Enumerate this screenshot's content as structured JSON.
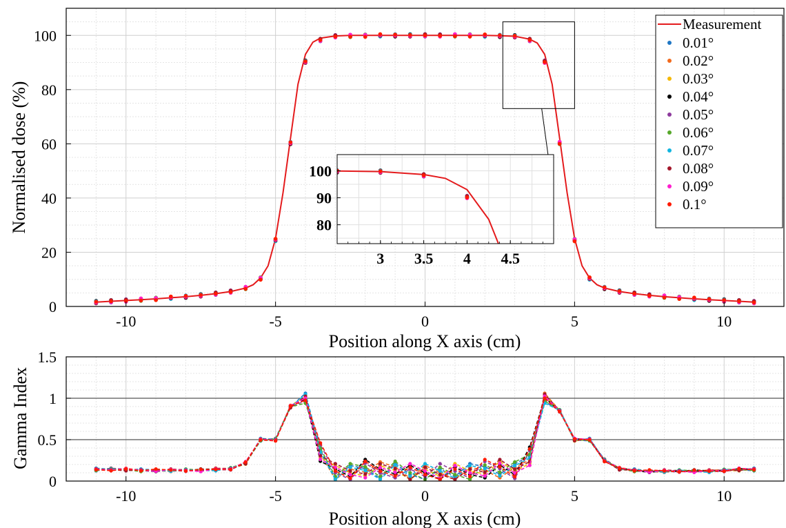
{
  "chart_data": [
    {
      "type": "line",
      "xlabel": "Position along X axis (cm)",
      "ylabel": "Normalised dose (%)",
      "xlim": [
        -12,
        12
      ],
      "ylim": [
        0,
        110
      ],
      "xticks": [
        -10,
        -5,
        0,
        5,
        10
      ],
      "xtick_labels": [
        "-10",
        "-5",
        "0",
        "5",
        "10"
      ],
      "yticks": [
        0,
        20,
        40,
        60,
        80,
        100
      ],
      "ytick_labels": [
        "0",
        "20",
        "40",
        "60",
        "80",
        "100"
      ],
      "grid": true,
      "legend_position": "top-right",
      "measurement": {
        "name": "Measurement",
        "color": "#e41a1c",
        "x": [
          -11,
          -10.5,
          -10,
          -9.5,
          -9,
          -8.5,
          -8,
          -7.5,
          -7,
          -6.5,
          -6,
          -5.75,
          -5.5,
          -5.25,
          -5,
          -4.75,
          -4.5,
          -4.25,
          -4,
          -3.75,
          -3.5,
          -3,
          -2.5,
          -2,
          -1,
          0,
          1,
          2,
          2.5,
          3,
          3.5,
          3.75,
          4,
          4.25,
          4.5,
          4.75,
          5,
          5.25,
          5.5,
          5.75,
          6,
          6.5,
          7,
          7.5,
          8,
          8.5,
          9,
          9.5,
          10,
          10.5,
          11
        ],
        "y": [
          1.6,
          1.9,
          2.2,
          2.5,
          2.8,
          3.2,
          3.6,
          4.1,
          4.7,
          5.5,
          6.8,
          8.0,
          10.5,
          15,
          25,
          42,
          62,
          82,
          93,
          97.5,
          99,
          99.8,
          100,
          100,
          100,
          100,
          100,
          100,
          99.9,
          99.7,
          98.6,
          97.2,
          93,
          82,
          62,
          42,
          25,
          15,
          10.5,
          8.0,
          6.8,
          5.5,
          4.7,
          4.1,
          3.6,
          3.2,
          2.8,
          2.5,
          2.2,
          1.9,
          1.6
        ]
      },
      "point_x": [
        -11,
        -10.5,
        -10,
        -9.5,
        -9,
        -8.5,
        -8,
        -7.5,
        -7,
        -6.5,
        -6,
        -5.5,
        -5,
        -4.5,
        -4,
        -3.5,
        -3,
        -2.5,
        -2,
        -1.5,
        -1,
        -0.5,
        0,
        0.5,
        1,
        1.5,
        2,
        2.5,
        3,
        3.5,
        4,
        4.5,
        5,
        5.5,
        6,
        6.5,
        7,
        7.5,
        8,
        8.5,
        9,
        9.5,
        10,
        10.5,
        11
      ],
      "point_y": [
        1.6,
        1.9,
        2.2,
        2.5,
        2.8,
        3.2,
        3.6,
        4.1,
        4.7,
        5.5,
        6.8,
        10.3,
        24.5,
        60.3,
        90.3,
        98.3,
        99.7,
        99.8,
        99.9,
        100,
        100,
        100,
        100,
        100,
        100,
        100,
        99.9,
        99.8,
        99.7,
        98.3,
        90.3,
        60.3,
        24.5,
        10.3,
        6.8,
        5.5,
        4.7,
        4.1,
        3.6,
        3.2,
        2.8,
        2.5,
        2.2,
        1.9,
        1.6
      ],
      "series": [
        {
          "name": "0.01°",
          "color": "#1f77c4"
        },
        {
          "name": "0.02°",
          "color": "#f26b1d"
        },
        {
          "name": "0.03°",
          "color": "#f5b800"
        },
        {
          "name": "0.04°",
          "color": "#000000"
        },
        {
          "name": "0.05°",
          "color": "#8e3a9d"
        },
        {
          "name": "0.06°",
          "color": "#56a82a"
        },
        {
          "name": "0.07°",
          "color": "#12b5e0"
        },
        {
          "name": "0.08°",
          "color": "#a3172b"
        },
        {
          "name": "0.09°",
          "color": "#ff1fce"
        },
        {
          "name": "0.1°",
          "color": "#ff1a00"
        }
      ],
      "inset": {
        "xlim": [
          2.5,
          5.0
        ],
        "ylim": [
          73,
          106
        ],
        "xticks": [
          3,
          3.5,
          4,
          4.5
        ],
        "xtick_labels": [
          "3",
          "3.5",
          "4",
          "4.5"
        ],
        "yticks": [
          80,
          90,
          100
        ],
        "ytick_labels": [
          "80",
          "90",
          "100"
        ],
        "zoom_region": {
          "x": [
            2.6,
            5.0
          ],
          "y": [
            73,
            105
          ]
        }
      }
    },
    {
      "type": "line",
      "xlabel": "Position along X axis (cm)",
      "ylabel": "Gamma Index",
      "xlim": [
        -12,
        12
      ],
      "ylim": [
        0,
        1.5
      ],
      "xticks": [
        -10,
        -5,
        0,
        5,
        10
      ],
      "xtick_labels": [
        "-10",
        "-5",
        "0",
        "5",
        "10"
      ],
      "yticks": [
        0,
        0.5,
        1,
        1.5
      ],
      "ytick_labels": [
        "0",
        "0.5",
        "1",
        "1.5"
      ],
      "reference_lines": [
        0.5,
        1
      ],
      "grid": true,
      "x": [
        -11,
        -10.5,
        -10,
        -9.5,
        -9,
        -8.5,
        -8,
        -7.5,
        -7,
        -6.5,
        -6,
        -5.5,
        -5,
        -4.5,
        -4,
        -3.5,
        -3,
        -2.5,
        -2,
        -1.5,
        -1,
        -0.5,
        0,
        0.5,
        1,
        1.5,
        2,
        2.5,
        3,
        3.5,
        4,
        4.5,
        5,
        5.5,
        6,
        6.5,
        7,
        7.5,
        8,
        8.5,
        9,
        9.5,
        10,
        10.5,
        11
      ],
      "base_profile": [
        0.14,
        0.14,
        0.14,
        0.13,
        0.13,
        0.13,
        0.13,
        0.13,
        0.14,
        0.15,
        0.22,
        0.5,
        0.5,
        0.9,
        1.0,
        0.35,
        0.1,
        0.1,
        0.15,
        0.12,
        0.15,
        0.1,
        0.1,
        0.1,
        0.1,
        0.1,
        0.15,
        0.15,
        0.12,
        0.3,
        1.0,
        0.85,
        0.5,
        0.5,
        0.25,
        0.15,
        0.13,
        0.12,
        0.12,
        0.12,
        0.12,
        0.12,
        0.13,
        0.14,
        0.14
      ],
      "series": [
        {
          "name": "0.01°",
          "color": "#1f77c4"
        },
        {
          "name": "0.02°",
          "color": "#f26b1d"
        },
        {
          "name": "0.03°",
          "color": "#f5b800"
        },
        {
          "name": "0.04°",
          "color": "#000000"
        },
        {
          "name": "0.05°",
          "color": "#8e3a9d"
        },
        {
          "name": "0.06°",
          "color": "#56a82a"
        },
        {
          "name": "0.07°",
          "color": "#12b5e0"
        },
        {
          "name": "0.08°",
          "color": "#a3172b"
        },
        {
          "name": "0.09°",
          "color": "#ff1fce"
        },
        {
          "name": "0.1°",
          "color": "#ff1a00"
        }
      ]
    }
  ]
}
